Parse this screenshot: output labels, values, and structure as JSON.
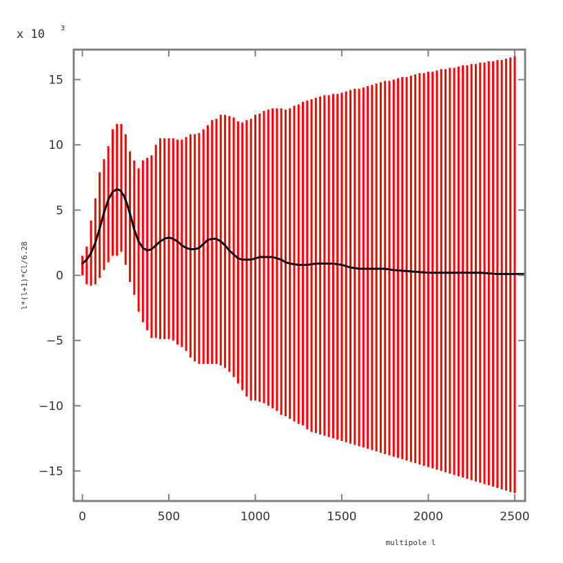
{
  "chart_data": {
    "type": "line",
    "title": "",
    "xlabel": "multipole l",
    "ylabel": "l*(l+1)*Cl/6.28",
    "y_scale_label": "x 10",
    "y_scale_exponent": "3",
    "xlim": [
      -50,
      2560
    ],
    "ylim": [
      -17.3,
      17.3
    ],
    "x_ticks": [
      0,
      500,
      1000,
      1500,
      2000,
      2500
    ],
    "x_tick_labels": [
      "0",
      "500",
      "1000",
      "1500",
      "2000",
      "2500"
    ],
    "y_ticks": [
      15,
      10,
      5,
      0,
      -5,
      -10,
      -15
    ],
    "y_tick_labels": [
      "15",
      "10",
      "5",
      "0",
      "−5",
      "−10",
      "−15"
    ],
    "grid": false,
    "colors": {
      "spectrum": "#000000",
      "error_bars": "#ff0000",
      "frame": "#808080"
    },
    "series": [
      {
        "type": "line",
        "x": [
          0,
          25,
          50,
          75,
          100,
          125,
          150,
          175,
          200,
          220,
          240,
          260,
          280,
          300,
          325,
          350,
          375,
          400,
          425,
          450,
          475,
          500,
          525,
          550,
          575,
          600,
          625,
          650,
          675,
          700,
          725,
          750,
          775,
          800,
          825,
          850,
          875,
          900,
          925,
          950,
          975,
          1000,
          1025,
          1050,
          1075,
          1100,
          1125,
          1150,
          1175,
          1200,
          1250,
          1300,
          1350,
          1400,
          1450,
          1500,
          1550,
          1600,
          1650,
          1700,
          1750,
          1800,
          1900,
          2000,
          2100,
          2200,
          2300,
          2400,
          2500,
          2560
        ],
        "y": [
          0.9,
          1.2,
          1.7,
          2.5,
          3.6,
          4.8,
          5.8,
          6.4,
          6.6,
          6.5,
          6.1,
          5.4,
          4.5,
          3.5,
          2.6,
          2.1,
          1.9,
          2.0,
          2.3,
          2.6,
          2.8,
          2.9,
          2.8,
          2.6,
          2.3,
          2.1,
          2.0,
          2.0,
          2.1,
          2.4,
          2.7,
          2.8,
          2.8,
          2.6,
          2.3,
          1.9,
          1.6,
          1.3,
          1.2,
          1.2,
          1.2,
          1.3,
          1.4,
          1.4,
          1.4,
          1.4,
          1.3,
          1.2,
          1.0,
          0.9,
          0.8,
          0.8,
          0.9,
          0.9,
          0.9,
          0.8,
          0.6,
          0.5,
          0.5,
          0.5,
          0.5,
          0.4,
          0.3,
          0.2,
          0.2,
          0.2,
          0.2,
          0.1,
          0.1,
          0.1
        ]
      },
      {
        "type": "error_bars",
        "x": [
          0,
          25,
          50,
          75,
          100,
          125,
          150,
          175,
          200,
          225,
          250,
          275,
          300,
          325,
          350,
          375,
          400,
          425,
          450,
          475,
          500,
          525,
          550,
          575,
          600,
          625,
          650,
          675,
          700,
          725,
          750,
          775,
          800,
          825,
          850,
          875,
          900,
          925,
          950,
          975,
          1000,
          1025,
          1050,
          1075,
          1100,
          1125,
          1150,
          1175,
          1200,
          1225,
          1250,
          1275,
          1300,
          1325,
          1350,
          1375,
          1400,
          1425,
          1450,
          1475,
          1500,
          1525,
          1550,
          1575,
          1600,
          1625,
          1650,
          1675,
          1700,
          1725,
          1750,
          1775,
          1800,
          1825,
          1850,
          1875,
          1900,
          1925,
          1950,
          1975,
          2000,
          2025,
          2050,
          2075,
          2100,
          2125,
          2150,
          2175,
          2200,
          2225,
          2250,
          2275,
          2300,
          2325,
          2350,
          2375,
          2400,
          2425,
          2450,
          2475,
          2500
        ],
        "y_high": [
          1.5,
          2.2,
          4.2,
          5.9,
          7.9,
          8.9,
          9.9,
          11.2,
          11.6,
          11.6,
          10.8,
          9.5,
          8.8,
          8.2,
          8.8,
          9.0,
          9.2,
          10.0,
          10.5,
          10.5,
          10.5,
          10.5,
          10.4,
          10.4,
          10.6,
          10.8,
          10.8,
          10.9,
          11.2,
          11.5,
          11.9,
          12.0,
          12.3,
          12.3,
          12.2,
          12.1,
          11.8,
          11.7,
          11.9,
          12.0,
          12.3,
          12.4,
          12.6,
          12.7,
          12.8,
          12.8,
          12.8,
          12.7,
          12.8,
          13.0,
          13.1,
          13.3,
          13.4,
          13.5,
          13.6,
          13.7,
          13.8,
          13.8,
          13.9,
          13.9,
          14.0,
          14.1,
          14.2,
          14.3,
          14.3,
          14.4,
          14.5,
          14.6,
          14.7,
          14.8,
          14.9,
          14.9,
          15.0,
          15.1,
          15.2,
          15.2,
          15.3,
          15.4,
          15.5,
          15.5,
          15.6,
          15.6,
          15.7,
          15.8,
          15.8,
          15.9,
          15.9,
          16.0,
          16.1,
          16.1,
          16.2,
          16.2,
          16.3,
          16.3,
          16.4,
          16.4,
          16.5,
          16.5,
          16.6,
          16.7,
          16.8
        ],
        "y_low": [
          0.0,
          -0.7,
          -0.8,
          -0.7,
          -0.2,
          0.4,
          1.0,
          1.5,
          1.5,
          1.8,
          0.8,
          -0.5,
          -1.5,
          -2.8,
          -3.6,
          -4.2,
          -4.8,
          -4.8,
          -4.9,
          -4.9,
          -4.9,
          -5.0,
          -5.3,
          -5.5,
          -5.8,
          -6.3,
          -6.6,
          -6.8,
          -6.8,
          -6.8,
          -6.8,
          -6.8,
          -6.9,
          -7.1,
          -7.4,
          -7.8,
          -8.3,
          -8.8,
          -9.3,
          -9.6,
          -9.6,
          -9.7,
          -9.8,
          -10.0,
          -10.2,
          -10.4,
          -10.7,
          -10.8,
          -11.0,
          -11.2,
          -11.4,
          -11.5,
          -11.8,
          -12.0,
          -12.1,
          -12.2,
          -12.3,
          -12.4,
          -12.5,
          -12.6,
          -12.7,
          -12.8,
          -12.9,
          -13.0,
          -13.1,
          -13.2,
          -13.3,
          -13.4,
          -13.5,
          -13.6,
          -13.7,
          -13.8,
          -13.9,
          -14.0,
          -14.1,
          -14.2,
          -14.3,
          -14.4,
          -14.5,
          -14.6,
          -14.7,
          -14.8,
          -14.9,
          -15.0,
          -15.1,
          -15.2,
          -15.3,
          -15.4,
          -15.5,
          -15.6,
          -15.7,
          -15.8,
          -15.9,
          -16.0,
          -16.1,
          -16.2,
          -16.3,
          -16.4,
          -16.5,
          -16.6,
          -16.7
        ]
      }
    ]
  }
}
